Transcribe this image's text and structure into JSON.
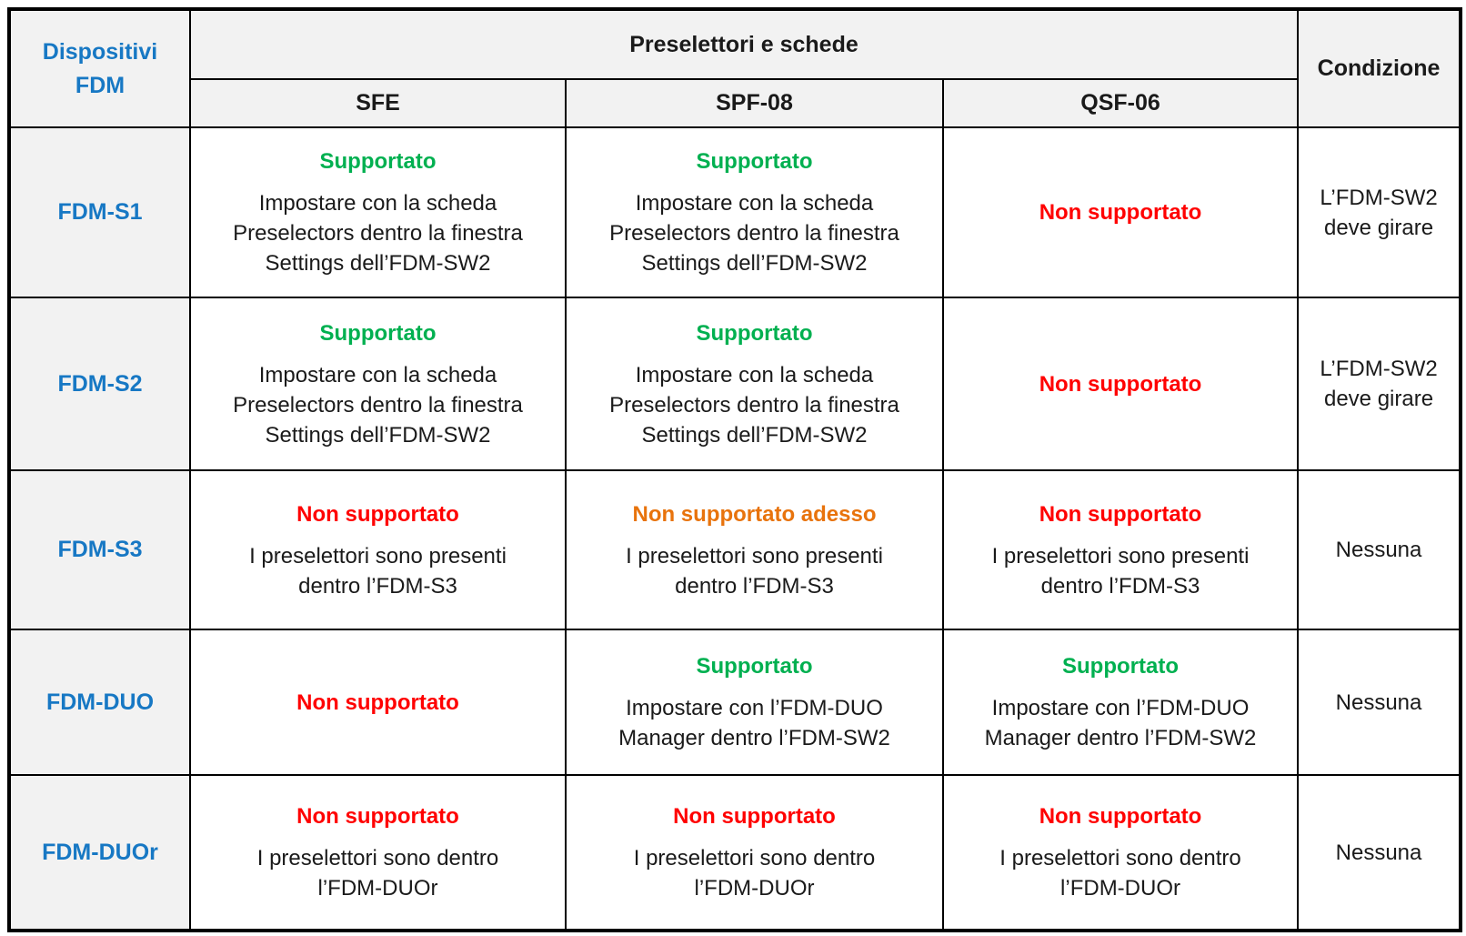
{
  "colors": {
    "device_blue": "#1778C4",
    "supported_green": "#00B050",
    "not_supported_red": "#FF0000",
    "warning_orange": "#E8730C",
    "header_bg": "#F2F2F2",
    "border": "#000000"
  },
  "table": {
    "header": {
      "devices_label": [
        "Dispositivi",
        "FDM"
      ],
      "group_label": "Preselettori e schede",
      "columns": [
        "SFE",
        "SPF-08",
        "QSF-06"
      ],
      "condition_label": "Condizione"
    },
    "rows": [
      {
        "device": "FDM-S1",
        "cells": [
          {
            "status": "Supportato",
            "status_color": "#00B050",
            "desc": [
              "Impostare con la scheda",
              "Preselectors dentro la finestra",
              "Settings dell’FDM-SW2"
            ]
          },
          {
            "status": "Supportato",
            "status_color": "#00B050",
            "desc": [
              "Impostare con la scheda",
              "Preselectors dentro la finestra",
              "Settings dell’FDM-SW2"
            ]
          },
          {
            "status": "Non supportato",
            "status_color": "#FF0000"
          }
        ],
        "condition": [
          "L’FDM-SW2",
          "deve girare"
        ]
      },
      {
        "device": "FDM-S2",
        "cells": [
          {
            "status": "Supportato",
            "status_color": "#00B050",
            "desc": [
              "Impostare con la scheda",
              "Preselectors dentro la finestra",
              "Settings dell’FDM-SW2"
            ]
          },
          {
            "status": "Supportato",
            "status_color": "#00B050",
            "desc": [
              "Impostare con la scheda",
              "Preselectors dentro la finestra",
              "Settings dell’FDM-SW2"
            ]
          },
          {
            "status": "Non supportato",
            "status_color": "#FF0000"
          }
        ],
        "condition": [
          "L’FDM-SW2",
          "deve girare"
        ]
      },
      {
        "device": "FDM-S3",
        "cells": [
          {
            "status": "Non supportato",
            "status_color": "#FF0000",
            "desc": [
              "I preselettori sono presenti",
              "dentro l’FDM-S3"
            ]
          },
          {
            "status": "Non supportato adesso",
            "status_color": "#E8730C",
            "desc": [
              "I preselettori sono presenti",
              "dentro l’FDM-S3"
            ]
          },
          {
            "status": "Non supportato",
            "status_color": "#FF0000",
            "desc": [
              "I preselettori sono presenti",
              "dentro l’FDM-S3"
            ]
          }
        ],
        "condition": "Nessuna"
      },
      {
        "device": "FDM-DUO",
        "cells": [
          {
            "status": "Non supportato",
            "status_color": "#FF0000"
          },
          {
            "status": "Supportato",
            "status_color": "#00B050",
            "desc": [
              "Impostare con l’FDM-DUO",
              "Manager dentro l’FDM-SW2"
            ]
          },
          {
            "status": "Supportato",
            "status_color": "#00B050",
            "desc": [
              "Impostare con l’FDM-DUO",
              "Manager dentro l’FDM-SW2"
            ]
          }
        ],
        "condition": "Nessuna"
      },
      {
        "device": "FDM-DUOr",
        "cells": [
          {
            "status": "Non supportato",
            "status_color": "#FF0000",
            "desc": [
              "I preselettori sono dentro",
              "l’FDM-DUOr"
            ]
          },
          {
            "status": "Non supportato",
            "status_color": "#FF0000",
            "desc": [
              "I preselettori sono dentro",
              "l’FDM-DUOr"
            ]
          },
          {
            "status": "Non supportato",
            "status_color": "#FF0000",
            "desc": [
              "I preselettori sono dentro",
              "l’FDM-DUOr"
            ]
          }
        ],
        "condition": "Nessuna"
      }
    ]
  }
}
